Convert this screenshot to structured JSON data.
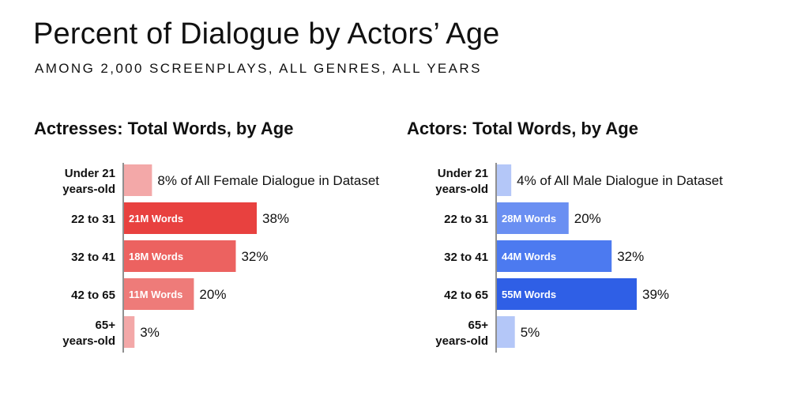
{
  "title": "Percent of Dialogue by Actors’ Age",
  "subtitle": "AMONG 2,000 SCREENPLAYS, ALL GENRES, ALL YEARS",
  "colors": {
    "female_dark": "#e8413f",
    "female_mid": "#ec6260",
    "female_light": "#f3a8a8",
    "male_dark": "#2f5fe6",
    "male_mid": "#4c7af0",
    "male_bright": "#6a8ff2",
    "male_light": "#b4c7f8"
  },
  "chart_data": [
    {
      "type": "bar",
      "orientation": "horizontal",
      "title": "Actresses: Total Words, by Age",
      "categories": [
        "Under 21 years-old",
        "22 to 31",
        "32 to 41",
        "42 to 65",
        "65+ years-old"
      ],
      "category_lines": [
        [
          "Under 21",
          "years-old"
        ],
        [
          "22 to 31"
        ],
        [
          "32 to 41"
        ],
        [
          "42 to 65"
        ],
        [
          "65+",
          "years-old"
        ]
      ],
      "values": [
        8,
        38,
        32,
        20,
        3
      ],
      "value_labels": [
        "8% of All Female Dialogue in Dataset",
        "38%",
        "32%",
        "20%",
        "3%"
      ],
      "inner_labels": [
        "",
        "21M Words",
        "18M Words",
        "11M Words",
        ""
      ],
      "bar_colors": [
        "#f3a8a8",
        "#e8413f",
        "#ec6260",
        "#ee7b79",
        "#f3a8a8"
      ],
      "xlim": [
        0,
        38
      ]
    },
    {
      "type": "bar",
      "orientation": "horizontal",
      "title": "Actors: Total Words, by Age",
      "categories": [
        "Under 21 years-old",
        "22 to 31",
        "32 to 41",
        "42 to 65",
        "65+ years-old"
      ],
      "category_lines": [
        [
          "Under 21",
          "years-old"
        ],
        [
          "22 to 31"
        ],
        [
          "32 to 41"
        ],
        [
          "42 to 65"
        ],
        [
          "65+",
          "years-old"
        ]
      ],
      "values": [
        4,
        20,
        32,
        39,
        5
      ],
      "value_labels": [
        "4% of All Male Dialogue in Dataset",
        "20%",
        "32%",
        "39%",
        "5%"
      ],
      "inner_labels": [
        "",
        "28M Words",
        "44M Words",
        "55M Words",
        ""
      ],
      "bar_colors": [
        "#b4c7f8",
        "#6a8ff2",
        "#4c7af0",
        "#2f5fe6",
        "#b4c7f8"
      ],
      "xlim": [
        0,
        39
      ]
    }
  ]
}
